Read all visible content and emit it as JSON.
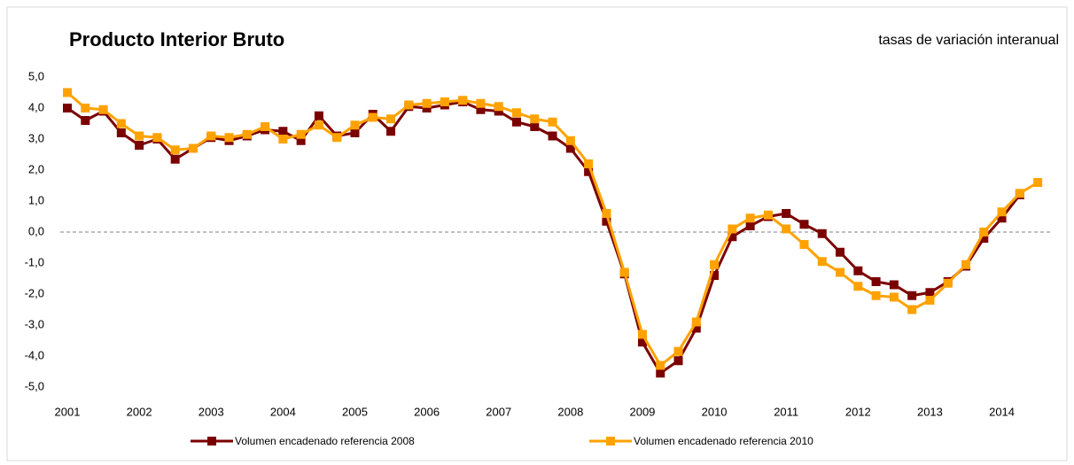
{
  "chart_data": {
    "type": "line",
    "title": "Producto Interior Bruto",
    "subtitle": "tasas de variación interanual",
    "categories": [
      "2001",
      null,
      null,
      null,
      "2002",
      null,
      null,
      null,
      "2003",
      null,
      null,
      null,
      "2004",
      null,
      null,
      null,
      "2005",
      null,
      null,
      null,
      "2006",
      null,
      null,
      null,
      "2007",
      null,
      null,
      null,
      "2008",
      null,
      null,
      null,
      "2009",
      null,
      null,
      null,
      "2010",
      null,
      null,
      null,
      "2011",
      null,
      null,
      null,
      "2012",
      null,
      null,
      null,
      "2013",
      null,
      null,
      null,
      "2014",
      null,
      null
    ],
    "series": [
      {
        "name": "Volumen encadenado referencia 2008",
        "color": "#7b0000",
        "values": [
          4.0,
          3.6,
          3.9,
          3.2,
          2.8,
          3.0,
          2.35,
          2.7,
          3.05,
          2.95,
          3.1,
          3.3,
          3.25,
          2.95,
          3.75,
          3.1,
          3.2,
          3.8,
          3.25,
          4.05,
          4.0,
          4.1,
          4.2,
          3.95,
          3.9,
          3.55,
          3.4,
          3.1,
          2.7,
          1.95,
          0.35,
          -1.35,
          -3.55,
          -4.55,
          -4.15,
          -3.1,
          -1.4,
          -0.15,
          0.2,
          0.5,
          0.6,
          0.25,
          -0.05,
          -0.65,
          -1.25,
          -1.6,
          -1.7,
          -2.05,
          -1.95,
          -1.6,
          -1.1,
          -0.2,
          0.45,
          1.2,
          null
        ]
      },
      {
        "name": "Volumen encadenado referencia 2010",
        "color": "#ffa200",
        "values": [
          4.5,
          4.0,
          3.95,
          3.5,
          3.1,
          3.05,
          2.65,
          2.7,
          3.1,
          3.05,
          3.15,
          3.4,
          3.0,
          3.15,
          3.45,
          3.05,
          3.45,
          3.7,
          3.65,
          4.1,
          4.15,
          4.2,
          4.25,
          4.15,
          4.05,
          3.85,
          3.65,
          3.55,
          2.95,
          2.2,
          0.6,
          -1.3,
          -3.3,
          -4.3,
          -3.85,
          -2.9,
          -1.05,
          0.1,
          0.45,
          0.55,
          0.1,
          -0.4,
          -0.95,
          -1.3,
          -1.75,
          -2.05,
          -2.1,
          -2.5,
          -2.2,
          -1.65,
          -1.05,
          0.0,
          0.65,
          1.25,
          1.6
        ]
      }
    ],
    "ylim": [
      -5,
      5
    ],
    "yticks": [
      {
        "value": -5,
        "label": "-5,0"
      },
      {
        "value": -4,
        "label": "-4,0"
      },
      {
        "value": -3,
        "label": "-3,0"
      },
      {
        "value": -2,
        "label": "-2,0"
      },
      {
        "value": -1,
        "label": "-1,0"
      },
      {
        "value": 0,
        "label": "0,0"
      },
      {
        "value": 1,
        "label": "1,0"
      },
      {
        "value": 2,
        "label": "2,0"
      },
      {
        "value": 3,
        "label": "3,0"
      },
      {
        "value": 4,
        "label": "4,0"
      },
      {
        "value": 5,
        "label": "5,0"
      }
    ],
    "zero_line": true,
    "legend": "bottom"
  }
}
